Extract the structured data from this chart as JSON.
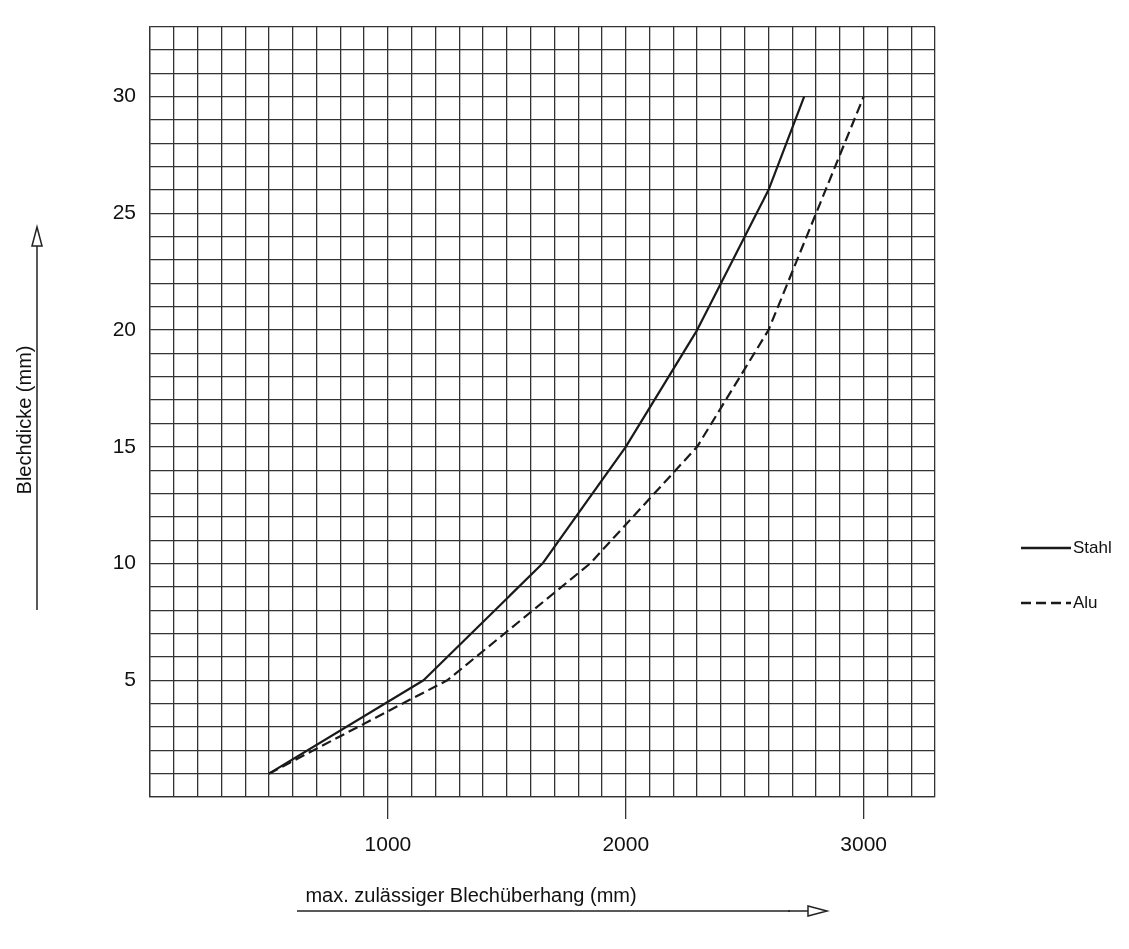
{
  "chart_data": {
    "type": "line",
    "xlabel": "max. zulässiger Blechüberhang (mm)",
    "ylabel": "Blechdicke (mm)",
    "xlim": [
      0,
      3300
    ],
    "ylim": [
      0,
      33
    ],
    "xticks": [
      {
        "value": 0,
        "label": null
      },
      {
        "value": 100,
        "label": null
      },
      {
        "value": 200,
        "label": null
      },
      {
        "value": 300,
        "label": null
      },
      {
        "value": 400,
        "label": null
      },
      {
        "value": 500,
        "label": null
      },
      {
        "value": 600,
        "label": null
      },
      {
        "value": 700,
        "label": null
      },
      {
        "value": 800,
        "label": null
      },
      {
        "value": 900,
        "label": null
      },
      1000,
      {
        "value": 1100,
        "label": null
      },
      {
        "value": 1200,
        "label": null
      },
      {
        "value": 1300,
        "label": null
      },
      {
        "value": 1400,
        "label": null
      },
      {
        "value": 1500,
        "label": null
      },
      {
        "value": 1600,
        "label": null
      },
      {
        "value": 1700,
        "label": null
      },
      {
        "value": 1800,
        "label": null
      },
      {
        "value": 1900,
        "label": null
      },
      2000,
      {
        "value": 2100,
        "label": null
      },
      {
        "value": 2200,
        "label": null
      },
      {
        "value": 2300,
        "label": null
      },
      {
        "value": 2400,
        "label": null
      },
      {
        "value": 2500,
        "label": null
      },
      {
        "value": 2600,
        "label": null
      },
      {
        "value": 2700,
        "label": null
      },
      {
        "value": 2800,
        "label": null
      },
      {
        "value": 2900,
        "label": null
      },
      3000,
      {
        "value": 3100,
        "label": null
      },
      {
        "value": 3200,
        "label": null
      },
      {
        "value": 3300,
        "label": null
      }
    ],
    "yticks": [
      {
        "value": 0,
        "label": null
      },
      {
        "value": 1,
        "label": null
      },
      {
        "value": 2,
        "label": null
      },
      {
        "value": 3,
        "label": null
      },
      {
        "value": 4,
        "label": null
      },
      5,
      {
        "value": 6,
        "label": null
      },
      {
        "value": 7,
        "label": null
      },
      {
        "value": 8,
        "label": null
      },
      {
        "value": 9,
        "label": null
      },
      10,
      {
        "value": 11,
        "label": null
      },
      {
        "value": 12,
        "label": null
      },
      {
        "value": 13,
        "label": null
      },
      {
        "value": 14,
        "label": null
      },
      15,
      {
        "value": 16,
        "label": null
      },
      {
        "value": 17,
        "label": null
      },
      {
        "value": 18,
        "label": null
      },
      {
        "value": 19,
        "label": null
      },
      20,
      {
        "value": 21,
        "label": null
      },
      {
        "value": 22,
        "label": null
      },
      {
        "value": 23,
        "label": null
      },
      {
        "value": 24,
        "label": null
      },
      25,
      {
        "value": 26,
        "label": null
      },
      {
        "value": 27,
        "label": null
      },
      {
        "value": 28,
        "label": null
      },
      {
        "value": 29,
        "label": null
      },
      30,
      {
        "value": 31,
        "label": null
      },
      {
        "value": 32,
        "label": null
      },
      {
        "value": 33,
        "label": null
      }
    ],
    "grid": true,
    "legend": "right",
    "marker": "none",
    "series": [
      {
        "name": "Stahl",
        "color": "#1a1a1a",
        "line_style": "solid",
        "x": [
          500,
          1150,
          1650,
          2000,
          2300,
          2550,
          2600,
          2750
        ],
        "values": [
          1,
          5,
          10,
          15,
          20,
          25,
          26,
          30
        ]
      },
      {
        "name": "Alu",
        "color": "#1a1a1a",
        "line_style": "dashed",
        "x": [
          500,
          1080,
          1250,
          1850,
          2300,
          2600,
          2700,
          2800,
          3000
        ],
        "values": [
          1,
          4.1,
          5,
          10,
          15,
          20,
          22.5,
          25,
          30
        ]
      }
    ]
  }
}
